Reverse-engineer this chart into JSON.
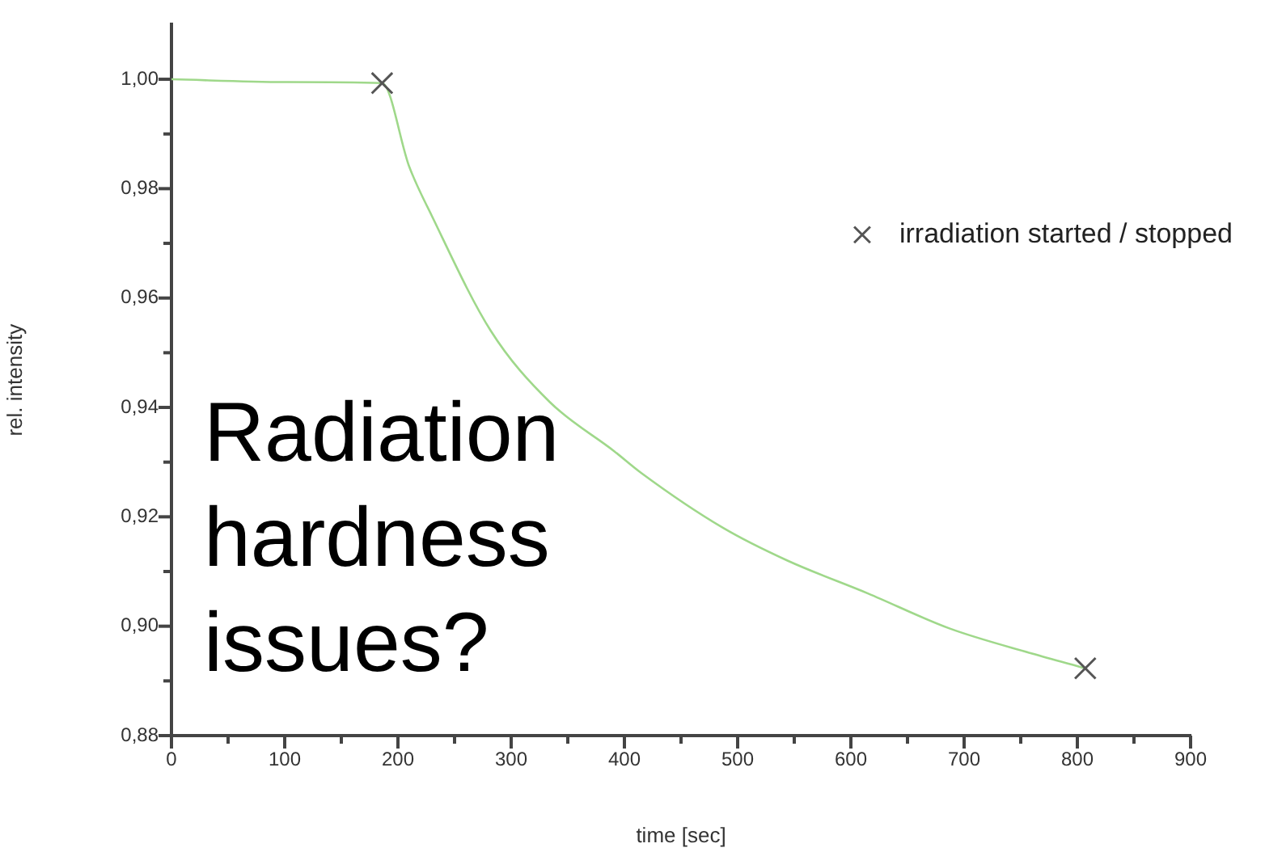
{
  "chart_data": {
    "type": "line",
    "xlabel": "time [sec]",
    "ylabel": "rel. intensity",
    "xlim": [
      0,
      900
    ],
    "xticks": [
      0,
      {
        "value": 50,
        "label": null
      },
      100,
      {
        "value": 150,
        "label": null
      },
      200,
      {
        "value": 250,
        "label": null
      },
      300,
      {
        "value": 350,
        "label": null
      },
      400,
      {
        "value": 450,
        "label": null
      },
      500,
      {
        "value": 550,
        "label": null
      },
      600,
      {
        "value": 650,
        "label": null
      },
      700,
      {
        "value": 750,
        "label": null
      },
      800,
      {
        "value": 850,
        "label": null
      },
      900
    ],
    "ylim": [
      0.88,
      1.01
    ],
    "yticks": [
      {
        "value": 0.88,
        "label": "0,88"
      },
      {
        "value": 0.89,
        "label": null
      },
      {
        "value": 0.9,
        "label": "0,90"
      },
      {
        "value": 0.91,
        "label": null
      },
      {
        "value": 0.92,
        "label": "0,92"
      },
      {
        "value": 0.93,
        "label": null
      },
      {
        "value": 0.94,
        "label": "0,94"
      },
      {
        "value": 0.95,
        "label": null
      },
      {
        "value": 0.96,
        "label": "0,96"
      },
      {
        "value": 0.97,
        "label": null
      },
      {
        "value": 0.98,
        "label": "0,98"
      },
      {
        "value": 0.99,
        "label": null
      },
      {
        "value": 1.0,
        "label": "1,00"
      }
    ],
    "grid": false,
    "legend": "top right",
    "annotations": [
      "Radiation hardness issues?"
    ],
    "series": [
      {
        "color": "#9fd88a",
        "marker": "none",
        "x": [
          0,
          100,
          186,
          210,
          230,
          282,
          334,
          391,
          415,
          487,
          544,
          615,
          687,
          760,
          807
        ],
        "values": [
          1.0,
          0.9995,
          0.9993,
          0.984,
          0.975,
          0.954,
          0.941,
          0.932,
          0.928,
          0.918,
          0.912,
          0.906,
          0.8996,
          0.895,
          0.8923
        ]
      },
      {
        "type": "scatter",
        "name": "irradiation started / stopped",
        "color": "#555555",
        "marker": "cross",
        "x": [
          186,
          807
        ],
        "values": [
          0.9993,
          0.8923
        ]
      }
    ]
  }
}
